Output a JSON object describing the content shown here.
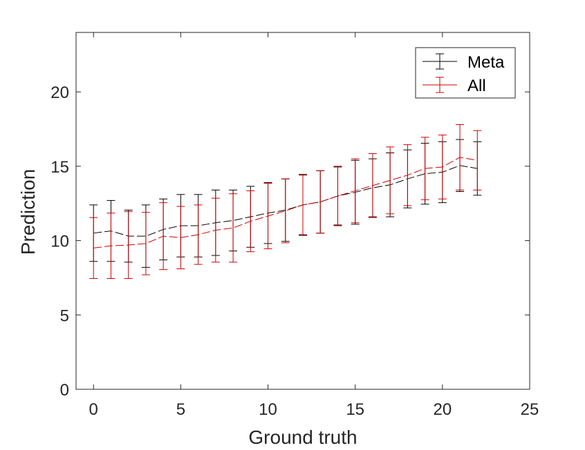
{
  "chart_data": {
    "type": "line",
    "title": "",
    "xlabel": "Ground truth",
    "ylabel": "Prediction",
    "xlim": [
      -1,
      25
    ],
    "ylim": [
      0,
      24
    ],
    "xticks": [
      "0",
      "5",
      "10",
      "15",
      "20",
      "25"
    ],
    "yticks": [
      "0",
      "5",
      "10",
      "15",
      "20"
    ],
    "grid": false,
    "legend_position": "top-right",
    "x": [
      0,
      1,
      2,
      3,
      4,
      5,
      6,
      7,
      8,
      9,
      10,
      11,
      12,
      13,
      14,
      15,
      16,
      17,
      18,
      19,
      20,
      21,
      22
    ],
    "series": [
      {
        "name": "Meta",
        "color": "#000000",
        "values": [
          10.5,
          10.65,
          10.3,
          10.3,
          10.75,
          11.0,
          11.0,
          11.2,
          11.35,
          11.6,
          11.85,
          12.05,
          12.4,
          12.6,
          13.0,
          13.25,
          13.55,
          13.75,
          14.15,
          14.5,
          14.6,
          15.05,
          14.85
        ],
        "errors": [
          1.9,
          2.05,
          1.75,
          2.1,
          2.05,
          2.1,
          2.1,
          2.2,
          2.05,
          2.05,
          2.05,
          2.1,
          2.05,
          2.1,
          1.95,
          2.15,
          1.95,
          2.15,
          1.95,
          2.05,
          2.05,
          1.75,
          1.8
        ]
      },
      {
        "name": "All",
        "color": "#cc0000",
        "values": [
          9.5,
          9.65,
          9.7,
          9.8,
          10.3,
          10.2,
          10.4,
          10.7,
          10.85,
          11.3,
          11.65,
          12.0,
          12.4,
          12.6,
          13.0,
          13.35,
          13.7,
          14.05,
          14.4,
          14.85,
          14.95,
          15.6,
          15.4
        ],
        "errors": [
          2.05,
          2.2,
          2.25,
          2.1,
          2.25,
          2.1,
          2.0,
          2.15,
          2.3,
          2.05,
          2.2,
          2.15,
          2.0,
          2.1,
          2.0,
          2.15,
          2.15,
          2.25,
          2.05,
          2.1,
          2.15,
          2.2,
          2.0
        ]
      }
    ]
  }
}
